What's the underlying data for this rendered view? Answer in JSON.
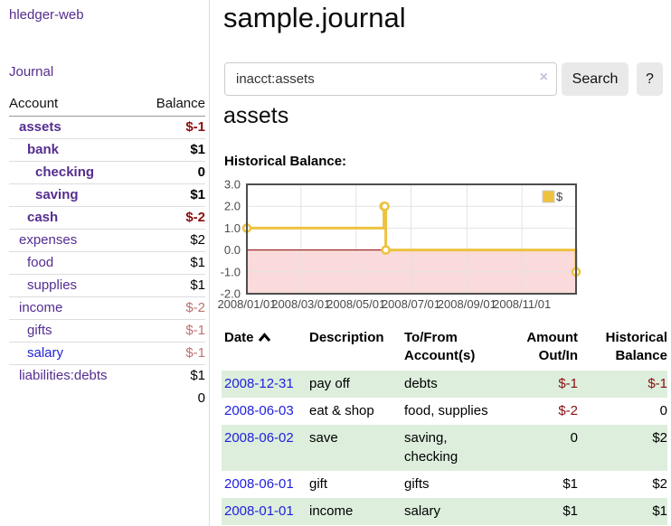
{
  "colors": {
    "link_purple": "#552d90",
    "link_blue": "#2121dc",
    "negative_strong": "#8b0e0e",
    "negative_soft": "#bf7070",
    "row_stripe_green": "#ddeedd",
    "button_bg": "#e9e9e9",
    "chart_series_gold": "#edc240",
    "chart_negative_fill": "#fadada",
    "chart_zero_line": "#8b0000"
  },
  "sidebar": {
    "app_title": "hledger-web",
    "journal_link": "Journal",
    "table": {
      "header_account": "Account",
      "header_balance": "Balance",
      "rows": [
        {
          "label": "assets",
          "balance": "$-1",
          "level": 1,
          "bold": true,
          "label_color": "purple",
          "balance_color": "neg"
        },
        {
          "label": "bank",
          "balance": "$1",
          "level": 2,
          "bold": true,
          "label_color": "purple",
          "balance_color": "black"
        },
        {
          "label": "checking",
          "balance": "0",
          "level": 3,
          "bold": true,
          "label_color": "purple",
          "balance_color": "black"
        },
        {
          "label": "saving",
          "balance": "$1",
          "level": 3,
          "bold": true,
          "label_color": "purple",
          "balance_color": "black"
        },
        {
          "label": "cash",
          "balance": "$-2",
          "level": 2,
          "bold": true,
          "label_color": "purple",
          "balance_color": "neg"
        },
        {
          "label": "expenses",
          "balance": "$2",
          "level": 1,
          "bold": false,
          "label_color": "purple",
          "balance_color": "black"
        },
        {
          "label": "food",
          "balance": "$1",
          "level": 2,
          "bold": false,
          "label_color": "purple",
          "balance_color": "black"
        },
        {
          "label": "supplies",
          "balance": "$1",
          "level": 2,
          "bold": false,
          "label_color": "purple",
          "balance_color": "black"
        },
        {
          "label": "income",
          "balance": "$-2",
          "level": 1,
          "bold": false,
          "label_color": "purple",
          "balance_color": "neg_soft"
        },
        {
          "label": "gifts",
          "balance": "$-1",
          "level": 2,
          "bold": false,
          "label_color": "purple",
          "balance_color": "neg_soft"
        },
        {
          "label": "salary",
          "balance": "$-1",
          "level": 2,
          "bold": false,
          "label_color": "blue",
          "balance_color": "neg_soft"
        },
        {
          "label": "liabilities:debts",
          "balance": "$1",
          "level": 1,
          "bold": false,
          "label_color": "purple",
          "balance_color": "black"
        }
      ],
      "total": "0"
    }
  },
  "main": {
    "title": "sample.journal",
    "search": {
      "value": "inacct:assets",
      "clear_icon": "×",
      "button": "Search",
      "help_button": "?"
    },
    "account_heading": "assets"
  },
  "chart_data": {
    "type": "line",
    "title": "Historical Balance:",
    "steps": true,
    "series": [
      {
        "name": "$",
        "color": "#edc240",
        "points": [
          [
            "2008-01-01",
            1
          ],
          [
            "2008-06-01",
            2
          ],
          [
            "2008-06-02",
            2
          ],
          [
            "2008-06-03",
            0
          ],
          [
            "2008-12-31",
            -1
          ]
        ]
      }
    ],
    "xlim": [
      "2008-01-01",
      "2008-12-31"
    ],
    "ylim": [
      -2,
      3
    ],
    "yticks": [
      "3.0",
      "2.0",
      "1.0",
      "0.0",
      "-1.0",
      "-2.0"
    ],
    "xticks": [
      "2008/01/01",
      "2008/03/01",
      "2008/05/01",
      "2008/07/01",
      "2008/09/01",
      "2008/11/01"
    ],
    "legend": {
      "label": "$",
      "position": "top-right"
    },
    "negative_region_fill": "#fadada",
    "zero_line_color": "#8b0000",
    "grid": true
  },
  "transactions": {
    "headers": {
      "date": "Date",
      "description": "Description",
      "accounts_l1": "To/From",
      "accounts_l2": "Account(s)",
      "amount_l1": "Amount",
      "amount_l2": "Out/In",
      "balance_l1": "Historical",
      "balance_l2": "Balance"
    },
    "rows": [
      {
        "date": "2008-12-31",
        "description": "pay off",
        "accounts": "debts",
        "amount": "$-1",
        "balance": "$-1",
        "amount_color": "neg",
        "balance_color": "neg"
      },
      {
        "date": "2008-06-03",
        "description": "eat & shop",
        "accounts": "food, supplies",
        "amount": "$-2",
        "balance": "0",
        "amount_color": "neg",
        "balance_color": "black"
      },
      {
        "date": "2008-06-02",
        "description": "save",
        "accounts": "saving, checking",
        "amount": "0",
        "balance": "$2",
        "amount_color": "black",
        "balance_color": "black"
      },
      {
        "date": "2008-06-01",
        "description": "gift",
        "accounts": "gifts",
        "amount": "$1",
        "balance": "$2",
        "amount_color": "black",
        "balance_color": "black"
      },
      {
        "date": "2008-01-01",
        "description": "income",
        "accounts": "salary",
        "amount": "$1",
        "balance": "$1",
        "amount_color": "black",
        "balance_color": "black"
      }
    ]
  }
}
